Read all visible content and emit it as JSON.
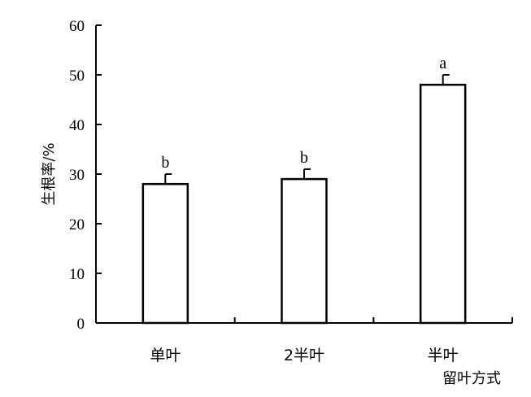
{
  "chart_data": {
    "type": "bar",
    "categories": [
      "单叶",
      "2半叶",
      "半叶"
    ],
    "values": [
      28,
      29,
      48
    ],
    "errors": [
      2,
      2,
      2
    ],
    "significance": [
      "b",
      "b",
      "a"
    ],
    "xlabel": "留叶方式",
    "ylabel": "生根率/%",
    "ylim": [
      0,
      60
    ],
    "yticks": [
      0,
      10,
      20,
      30,
      40,
      50,
      60
    ],
    "grid": false,
    "colors": {
      "bar_fill": "#ffffff",
      "bar_stroke": "#000000",
      "axis": "#000000"
    }
  }
}
